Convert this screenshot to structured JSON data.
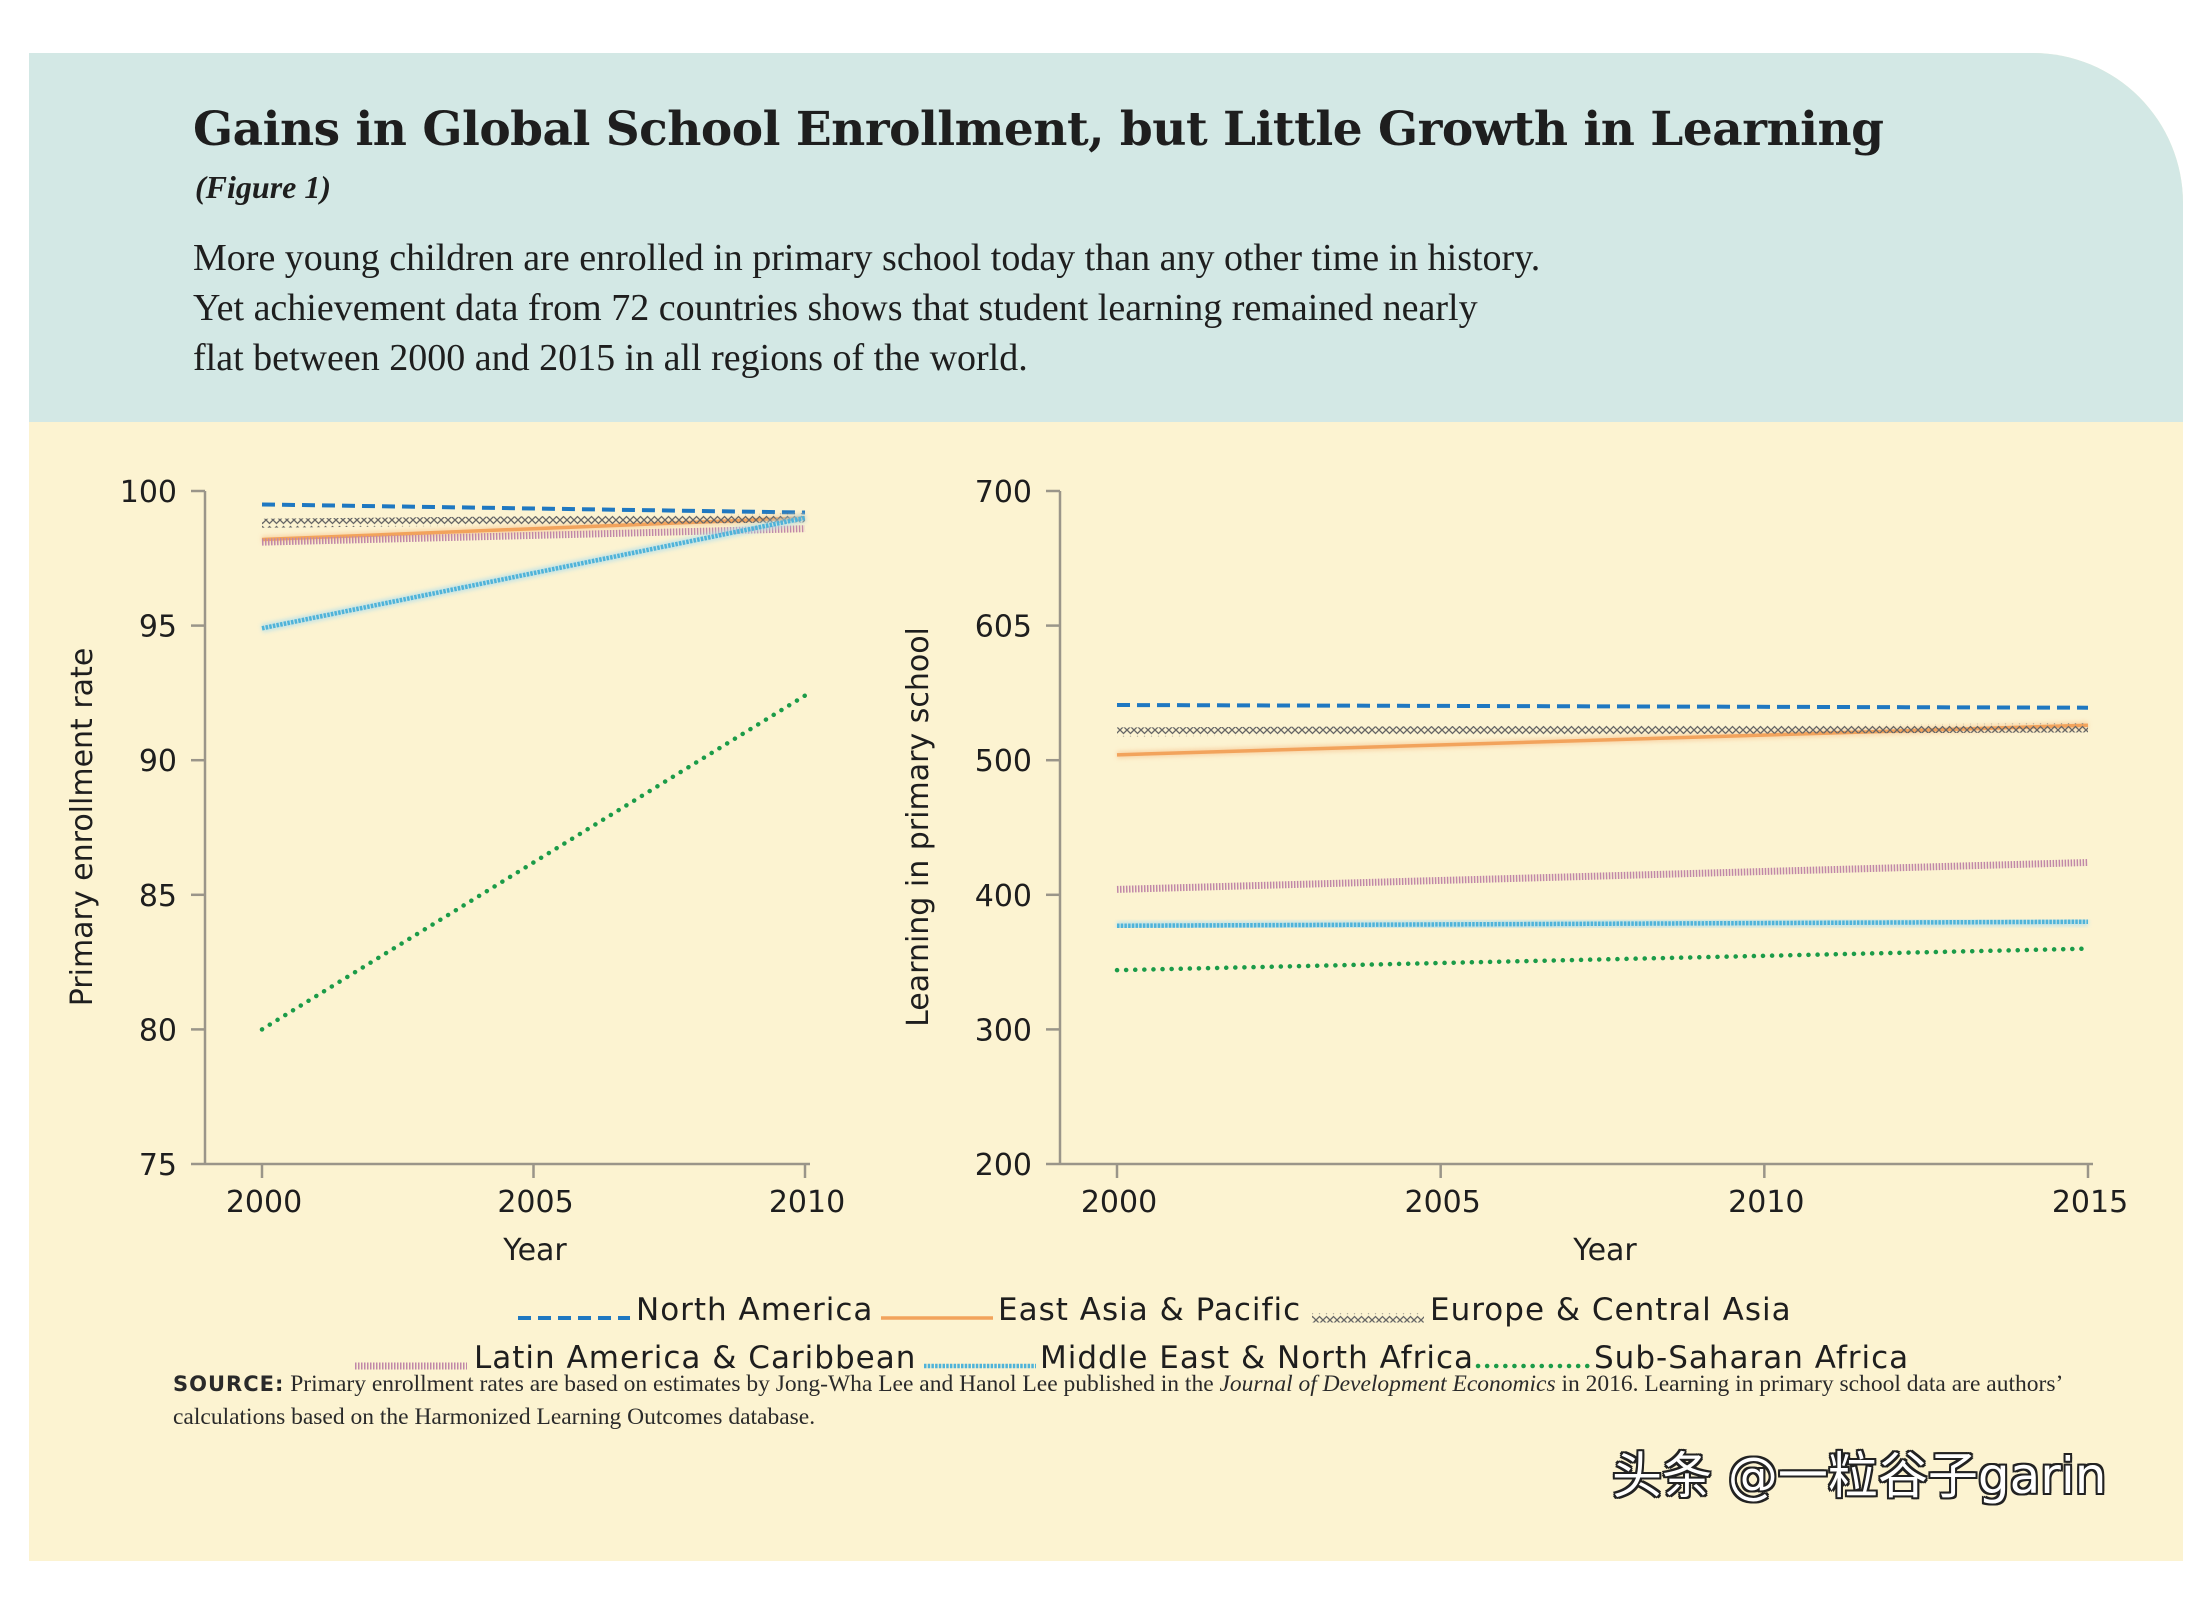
{
  "header": {
    "title": "Gains in Global School Enrollment, but Little Growth in Learning",
    "figure_label": "(Figure 1)",
    "description_lines": [
      "More young children are enrolled in primary school today than any other time in history.",
      "Yet achievement data from 72 countries shows that student learning remained nearly",
      "flat between 2000 and 2015 in all regions of the world."
    ]
  },
  "colors": {
    "header_bg": "#d3e8e5",
    "plot_bg": "#fcf3d1",
    "axis": "#9a9589",
    "north_america": "#1f78c1",
    "east_asia_pacific": "#f2a35c",
    "europe_central_asia": "#666666",
    "latin_america_caribbean": "#c087a8",
    "middle_east_north_africa": "#4fb3d9",
    "sub_saharan_africa": "#1b9b48"
  },
  "chart_data": [
    {
      "type": "line",
      "ylabel": "Primary enrollment rate",
      "xlabel": "Year",
      "ylim": [
        75,
        100
      ],
      "yticks": [
        100,
        95,
        90,
        85,
        80,
        75
      ],
      "xticks": [
        2000,
        2005,
        2010
      ],
      "x": [
        2000,
        2010
      ],
      "series": [
        {
          "key": "north_america",
          "name": "North America",
          "values": [
            99.5,
            99.2
          ]
        },
        {
          "key": "east_asia_pacific",
          "name": "East Asia & Pacific",
          "values": [
            98.2,
            99.0
          ]
        },
        {
          "key": "europe_central_asia",
          "name": "Europe & Central Asia",
          "values": [
            98.8,
            99.0
          ]
        },
        {
          "key": "latin_america_caribbean",
          "name": "Latin America & Caribbean",
          "values": [
            98.1,
            98.6
          ]
        },
        {
          "key": "middle_east_north_africa",
          "name": "Middle East & North Africa",
          "values": [
            94.9,
            99.0
          ]
        },
        {
          "key": "sub_saharan_africa",
          "name": "Sub-Saharan Africa",
          "values": [
            80.0,
            92.4
          ]
        }
      ]
    },
    {
      "type": "line",
      "ylabel": "Learning in primary school",
      "xlabel": "Year",
      "ylim": [
        200,
        700
      ],
      "yticks": [
        700,
        605,
        500,
        400,
        300,
        200
      ],
      "xticks": [
        2000,
        2005,
        2010,
        2015
      ],
      "x": [
        2000,
        2015
      ],
      "series": [
        {
          "key": "north_america",
          "name": "North America",
          "values": [
            541,
            539
          ]
        },
        {
          "key": "east_asia_pacific",
          "name": "East Asia & Pacific",
          "values": [
            504,
            526
          ]
        },
        {
          "key": "europe_central_asia",
          "name": "Europe & Central Asia",
          "values": [
            521,
            524
          ]
        },
        {
          "key": "latin_america_caribbean",
          "name": "Latin America & Caribbean",
          "values": [
            404,
            424
          ]
        },
        {
          "key": "middle_east_north_africa",
          "name": "Middle East & North Africa",
          "values": [
            377,
            380
          ]
        },
        {
          "key": "sub_saharan_africa",
          "name": "Sub-Saharan Africa",
          "values": [
            344,
            360
          ]
        }
      ]
    }
  ],
  "legend": [
    {
      "key": "north_america",
      "label": "North America"
    },
    {
      "key": "east_asia_pacific",
      "label": "East Asia & Pacific"
    },
    {
      "key": "europe_central_asia",
      "label": "Europe & Central Asia"
    },
    {
      "key": "latin_america_caribbean",
      "label": "Latin America & Caribbean"
    },
    {
      "key": "middle_east_north_africa",
      "label": "Middle East & North Africa"
    },
    {
      "key": "sub_saharan_africa",
      "label": "Sub-Saharan Africa"
    }
  ],
  "source": {
    "label": "SOURCE:",
    "text_before": " Primary enrollment rates are based on estimates by Jong-Wha Lee and Hanol Lee published in the ",
    "journal": "Journal of Development Economics",
    "text_after": " in 2016. Learning in primary school data are authors’ calculations based on the Harmonized Learning Outcomes database."
  },
  "watermark": "头条 @一粒谷子garin"
}
